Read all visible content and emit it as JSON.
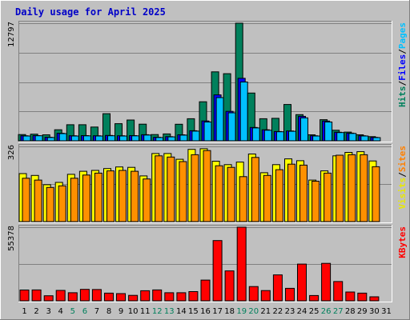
{
  "chart_data": {
    "type": "bar",
    "title": "Daily usage for April 2025",
    "days": [
      1,
      2,
      3,
      4,
      5,
      6,
      7,
      8,
      9,
      10,
      11,
      12,
      13,
      14,
      15,
      16,
      17,
      18,
      19,
      20,
      21,
      22,
      23,
      24,
      25,
      26,
      27,
      28,
      29,
      30,
      31
    ],
    "weekend_days": [
      5,
      6,
      12,
      13,
      19,
      20,
      26,
      27
    ],
    "panels": [
      {
        "id": "hits-files-pages",
        "ymax_label": "12797",
        "ylim": [
          0,
          12797
        ],
        "side_labels": [
          {
            "text": "Hits",
            "color": "#00805c"
          },
          {
            "text": "/",
            "color": "#000000"
          },
          {
            "text": "Files",
            "color": "#0000ff"
          },
          {
            "text": "/",
            "color": "#000000"
          },
          {
            "text": "Pages",
            "color": "#00c0ff"
          }
        ],
        "series": [
          {
            "name": "Hits",
            "color": "#00805c",
            "values": [
              680,
              720,
              650,
              1200,
              1750,
              1750,
              1500,
              2950,
              1860,
              2260,
              1810,
              680,
              750,
              1800,
              2400,
              4250,
              7500,
              7300,
              12797,
              5200,
              2400,
              2450,
              3950,
              2850,
              650,
              2300,
              1150,
              950,
              650,
              450,
              0
            ]
          },
          {
            "name": "Files",
            "color": "#0000ff",
            "values": [
              550,
              570,
              380,
              820,
              550,
              570,
              550,
              580,
              550,
              570,
              660,
              380,
              450,
              650,
              1100,
              2160,
              5000,
              3200,
              6800,
              1450,
              1200,
              1010,
              1070,
              2660,
              550,
              2150,
              930,
              840,
              550,
              370,
              0
            ]
          },
          {
            "name": "Pages",
            "color": "#00c0ff",
            "values": [
              520,
              550,
              360,
              780,
              520,
              540,
              520,
              550,
              520,
              540,
              630,
              360,
              430,
              620,
              1050,
              2050,
              4700,
              3050,
              6400,
              1400,
              1150,
              980,
              1040,
              2500,
              520,
              2050,
              900,
              800,
              520,
              350,
              0
            ]
          }
        ]
      },
      {
        "id": "visits-sites",
        "ymax_label": "326",
        "ylim": [
          0,
          326
        ],
        "side_labels": [
          {
            "text": "Visits",
            "color": "#e8e800"
          },
          {
            "text": "/",
            "color": "#000000"
          },
          {
            "text": "Sites",
            "color": "#ff8000"
          }
        ],
        "series": [
          {
            "name": "Visits",
            "color": "#ffff00",
            "values": [
              208,
              200,
              160,
              170,
              205,
              218,
              222,
              230,
              237,
              235,
              198,
              295,
              295,
              270,
              313,
              316,
              262,
              247,
              258,
              293,
              212,
              247,
              272,
              264,
              180,
              220,
              285,
              300,
              303,
              263,
              0
            ]
          },
          {
            "name": "Sites",
            "color": "#ff9000",
            "values": [
              188,
              180,
              148,
              155,
              188,
              202,
              210,
              220,
              222,
              218,
              185,
              285,
              280,
              260,
              290,
              308,
              242,
              235,
              195,
              278,
              200,
              225,
              249,
              245,
              175,
              210,
              288,
              290,
              290,
              238,
              0
            ]
          }
        ]
      },
      {
        "id": "kbytes",
        "ymax_label": "55378",
        "ylim": [
          0,
          55378
        ],
        "side_labels": [
          {
            "text": "KBytes",
            "color": "#ff0000"
          }
        ],
        "series": [
          {
            "name": "KBytes",
            "color": "#ff0000",
            "values": [
              8100,
              8200,
              3800,
              7800,
              6100,
              8600,
              8500,
              5800,
              5400,
              4100,
              7600,
              8200,
              6100,
              6100,
              6900,
              15600,
              45300,
              22500,
              55378,
              10700,
              7700,
              19500,
              9400,
              27600,
              4000,
              28200,
              14500,
              6600,
              5800,
              3000,
              0
            ]
          }
        ]
      }
    ]
  }
}
